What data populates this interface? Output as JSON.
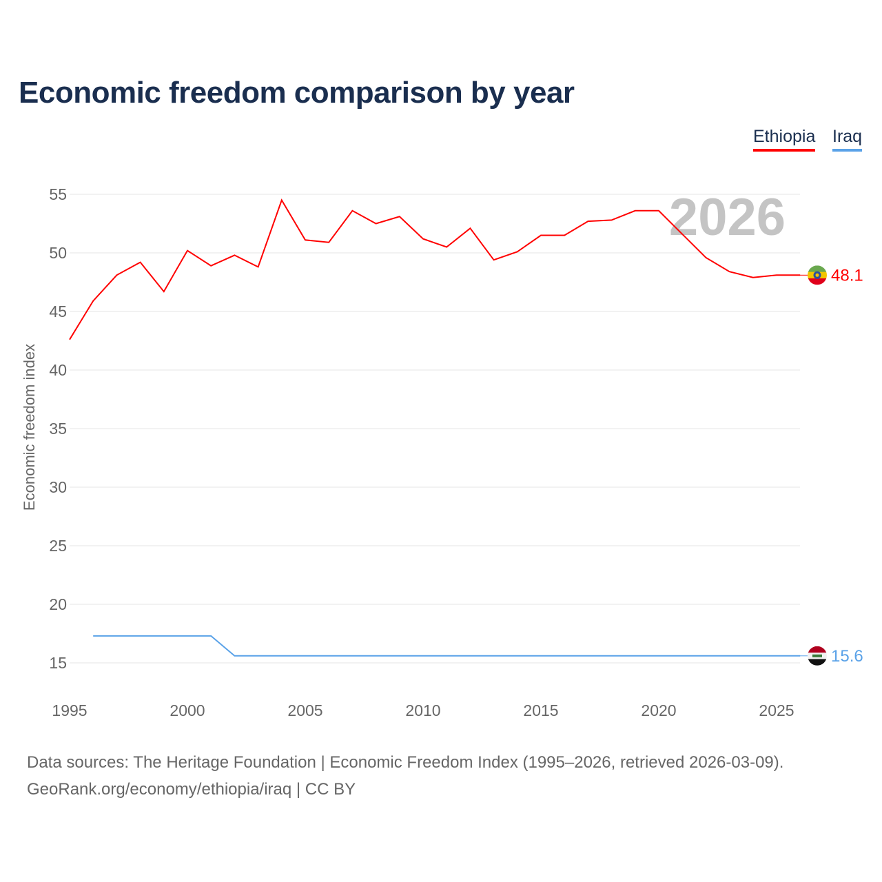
{
  "title": "Economic freedom comparison by year",
  "legend": [
    {
      "label": "Ethiopia",
      "color": "#ff0000"
    },
    {
      "label": "Iraq",
      "color": "#5aa2e8"
    }
  ],
  "year_watermark": "2026",
  "footer": {
    "line1": "Data sources: The Heritage Foundation | Economic Freedom Index (1995–2026, retrieved 2026-03-09).",
    "line2": "GeoRank.org/economy/ethiopia/iraq | CC BY"
  },
  "chart_data": {
    "type": "line",
    "title": "Economic freedom comparison by year",
    "ylabel": "Economic freedom index",
    "xlabel": "",
    "xlim": [
      1995,
      2026
    ],
    "ylim": [
      15,
      55
    ],
    "xticks": [
      "1995",
      "2000",
      "2005",
      "2010",
      "2015",
      "2020",
      "2025"
    ],
    "yticks": [
      "15",
      "20",
      "25",
      "30",
      "35",
      "40",
      "45",
      "50",
      "55"
    ],
    "grid": true,
    "series": [
      {
        "name": "Ethiopia",
        "color": "#ff0000",
        "end_label": "48.1",
        "x": [
          1995,
          1996,
          1997,
          1998,
          1999,
          2000,
          2001,
          2002,
          2003,
          2004,
          2005,
          2006,
          2007,
          2008,
          2009,
          2010,
          2011,
          2012,
          2013,
          2014,
          2015,
          2016,
          2017,
          2018,
          2019,
          2020,
          2021,
          2022,
          2023,
          2024,
          2025,
          2026
        ],
        "values": [
          42.6,
          45.9,
          48.1,
          49.2,
          46.7,
          50.2,
          48.9,
          49.8,
          48.8,
          54.5,
          51.1,
          50.9,
          53.6,
          52.5,
          53.1,
          51.2,
          50.5,
          52.1,
          49.4,
          50.1,
          51.5,
          51.5,
          52.7,
          52.8,
          53.6,
          53.6,
          51.6,
          49.6,
          48.4,
          47.9,
          48.1,
          48.1
        ]
      },
      {
        "name": "Iraq",
        "color": "#5aa2e8",
        "end_label": "15.6",
        "x": [
          1996,
          1997,
          1998,
          1999,
          2000,
          2001,
          2002,
          2003,
          2004,
          2005,
          2006,
          2007,
          2008,
          2009,
          2010,
          2011,
          2012,
          2013,
          2014,
          2015,
          2016,
          2017,
          2018,
          2019,
          2020,
          2021,
          2022,
          2023,
          2024,
          2025,
          2026
        ],
        "values": [
          17.3,
          17.3,
          17.3,
          17.3,
          17.3,
          17.3,
          15.6,
          15.6,
          15.6,
          15.6,
          15.6,
          15.6,
          15.6,
          15.6,
          15.6,
          15.6,
          15.6,
          15.6,
          15.6,
          15.6,
          15.6,
          15.6,
          15.6,
          15.6,
          15.6,
          15.6,
          15.6,
          15.6,
          15.6,
          15.6,
          15.6
        ]
      }
    ]
  }
}
